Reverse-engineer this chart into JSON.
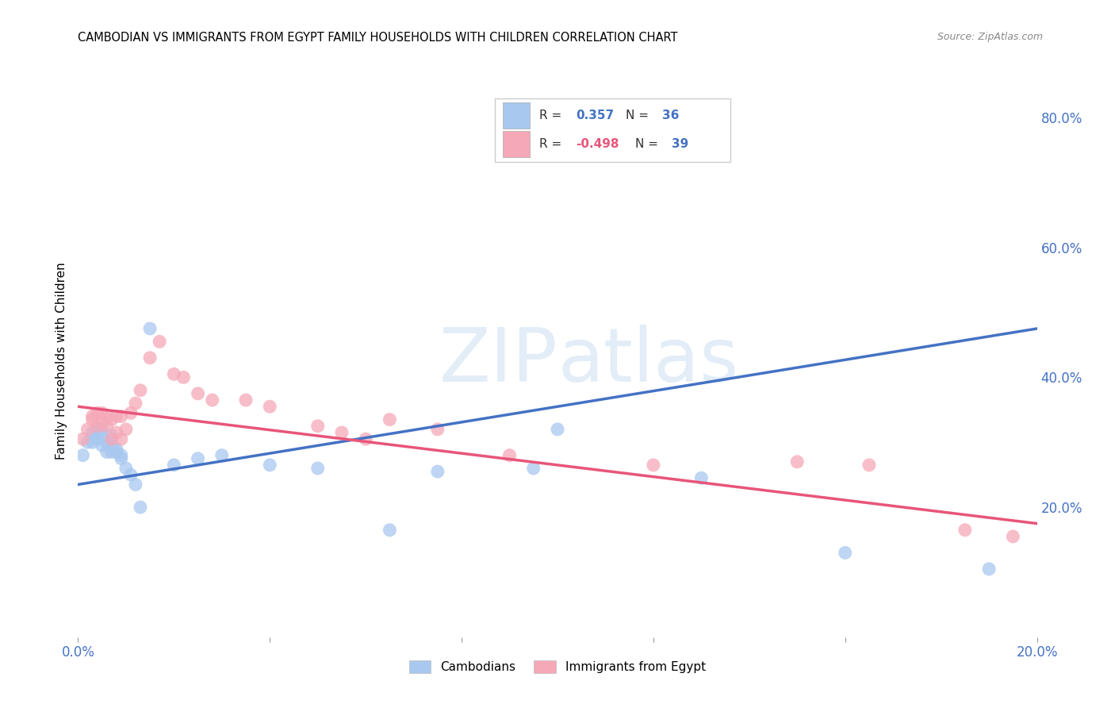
{
  "title": "CAMBODIAN VS IMMIGRANTS FROM EGYPT FAMILY HOUSEHOLDS WITH CHILDREN CORRELATION CHART",
  "source": "Source: ZipAtlas.com",
  "ylabel": "Family Households with Children",
  "x_min": 0.0,
  "x_max": 0.2,
  "y_min": 0.0,
  "y_max": 0.85,
  "x_ticks": [
    0.0,
    0.04,
    0.08,
    0.12,
    0.16,
    0.2
  ],
  "x_tick_labels": [
    "0.0%",
    "",
    "",
    "",
    "",
    "20.0%"
  ],
  "y_ticks_right": [
    0.2,
    0.4,
    0.6,
    0.8
  ],
  "y_tick_labels_right": [
    "20.0%",
    "40.0%",
    "60.0%",
    "80.0%"
  ],
  "cambodian_color": "#A8C8F0",
  "egypt_color": "#F5A8B8",
  "cambodian_line_color": "#4472C4",
  "egypt_line_color": "#E8557A",
  "watermark_color": "#D8E8F5",
  "background_color": "#FFFFFF",
  "grid_color": "#CCCCCC",
  "cam_line_x": [
    0.0,
    0.2
  ],
  "cam_line_y": [
    0.235,
    0.475
  ],
  "egypt_line_x": [
    0.0,
    0.2
  ],
  "egypt_line_y": [
    0.355,
    0.175
  ],
  "cambodian_x": [
    0.001,
    0.002,
    0.003,
    0.003,
    0.004,
    0.004,
    0.004,
    0.005,
    0.005,
    0.005,
    0.006,
    0.006,
    0.007,
    0.007,
    0.007,
    0.008,
    0.008,
    0.009,
    0.009,
    0.01,
    0.011,
    0.012,
    0.013,
    0.015,
    0.02,
    0.025,
    0.03,
    0.04,
    0.05,
    0.065,
    0.075,
    0.095,
    0.1,
    0.13,
    0.16,
    0.19
  ],
  "cambodian_y": [
    0.28,
    0.3,
    0.3,
    0.315,
    0.305,
    0.32,
    0.315,
    0.295,
    0.31,
    0.32,
    0.285,
    0.3,
    0.285,
    0.295,
    0.31,
    0.285,
    0.29,
    0.275,
    0.28,
    0.26,
    0.25,
    0.235,
    0.2,
    0.475,
    0.265,
    0.275,
    0.28,
    0.265,
    0.26,
    0.165,
    0.255,
    0.26,
    0.32,
    0.245,
    0.13,
    0.105
  ],
  "egypt_x": [
    0.001,
    0.002,
    0.003,
    0.003,
    0.004,
    0.004,
    0.005,
    0.005,
    0.006,
    0.006,
    0.007,
    0.007,
    0.008,
    0.008,
    0.009,
    0.009,
    0.01,
    0.011,
    0.012,
    0.013,
    0.015,
    0.017,
    0.02,
    0.022,
    0.025,
    0.028,
    0.035,
    0.04,
    0.05,
    0.055,
    0.06,
    0.065,
    0.075,
    0.09,
    0.12,
    0.15,
    0.165,
    0.185,
    0.195
  ],
  "egypt_y": [
    0.305,
    0.32,
    0.335,
    0.34,
    0.325,
    0.345,
    0.33,
    0.345,
    0.325,
    0.34,
    0.305,
    0.335,
    0.315,
    0.34,
    0.305,
    0.34,
    0.32,
    0.345,
    0.36,
    0.38,
    0.43,
    0.455,
    0.405,
    0.4,
    0.375,
    0.365,
    0.365,
    0.355,
    0.325,
    0.315,
    0.305,
    0.335,
    0.32,
    0.28,
    0.265,
    0.27,
    0.265,
    0.165,
    0.155
  ]
}
